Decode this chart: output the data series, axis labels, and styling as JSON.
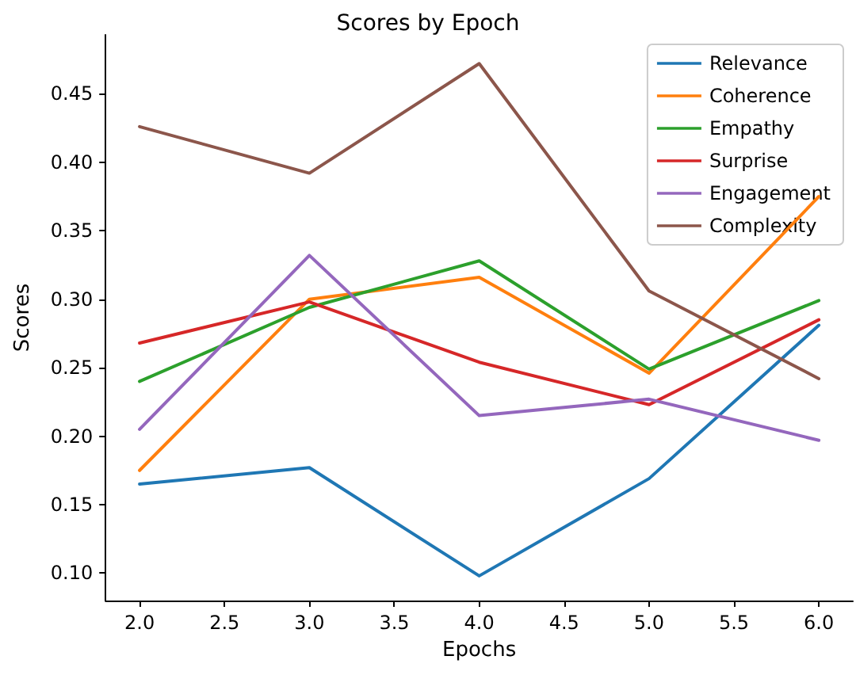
{
  "chart_data": {
    "type": "line",
    "title": "Scores by Epoch",
    "xlabel": "Epochs",
    "ylabel": "Scores",
    "x": [
      2,
      3,
      4,
      5,
      6
    ],
    "series": [
      {
        "name": "Relevance",
        "color": "#1f77b4",
        "values": [
          0.165,
          0.177,
          0.098,
          0.169,
          0.281
        ]
      },
      {
        "name": "Coherence",
        "color": "#ff7f0e",
        "values": [
          0.175,
          0.3,
          0.316,
          0.246,
          0.375
        ]
      },
      {
        "name": "Empathy",
        "color": "#2ca02c",
        "values": [
          0.24,
          0.294,
          0.328,
          0.249,
          0.299
        ]
      },
      {
        "name": "Surprise",
        "color": "#d62728",
        "values": [
          0.268,
          0.298,
          0.254,
          0.223,
          0.285
        ]
      },
      {
        "name": "Engagement",
        "color": "#9467bd",
        "values": [
          0.205,
          0.332,
          0.215,
          0.227,
          0.197
        ]
      },
      {
        "name": "Complexity",
        "color": "#8c564b",
        "values": [
          0.426,
          0.392,
          0.472,
          0.306,
          0.242
        ]
      }
    ],
    "xlim": [
      1.8,
      6.2
    ],
    "xticks": [
      {
        "value": 2,
        "label": "2.0"
      },
      {
        "value": 2.5,
        "label": "2.5"
      },
      {
        "value": 3,
        "label": "3.0"
      },
      {
        "value": 3.5,
        "label": "3.5"
      },
      {
        "value": 4,
        "label": "4.0"
      },
      {
        "value": 4.5,
        "label": "4.5"
      },
      {
        "value": 5,
        "label": "5.0"
      },
      {
        "value": 5.5,
        "label": "5.5"
      },
      {
        "value": 6,
        "label": "6.0"
      }
    ],
    "ylim": [
      0.08,
      0.493
    ],
    "yticks": [
      {
        "value": 0.1,
        "label": "0.10"
      },
      {
        "value": 0.15,
        "label": "0.15"
      },
      {
        "value": 0.2,
        "label": "0.20"
      },
      {
        "value": 0.25,
        "label": "0.25"
      },
      {
        "value": 0.3,
        "label": "0.30"
      },
      {
        "value": 0.35,
        "label": "0.35"
      },
      {
        "value": 0.4,
        "label": "0.40"
      },
      {
        "value": 0.45,
        "label": "0.45"
      }
    ],
    "grid": false,
    "legend": "top right",
    "marker": "none",
    "line_style": "solid"
  }
}
